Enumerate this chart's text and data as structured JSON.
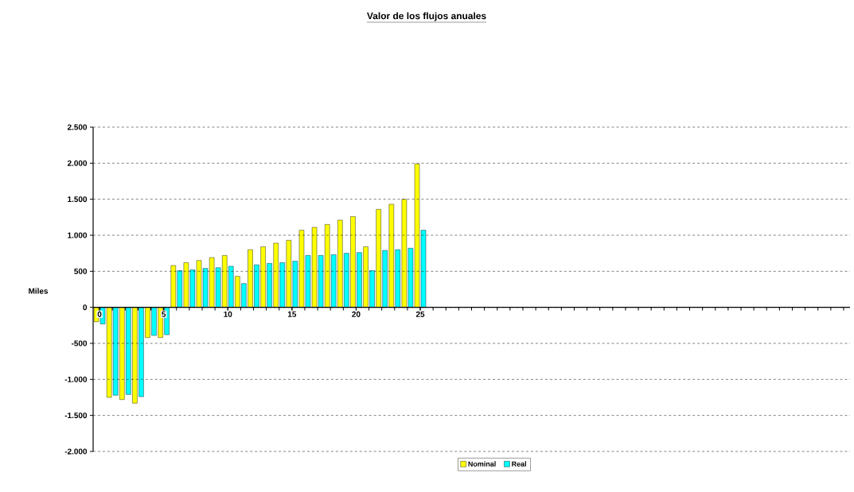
{
  "chart_data": {
    "type": "bar",
    "title": "Valor de los flujos anuales",
    "ylabel": "Miles",
    "categories": [
      "0",
      null,
      null,
      null,
      null,
      "5",
      null,
      null,
      null,
      null,
      "10",
      null,
      null,
      null,
      null,
      "15",
      null,
      null,
      null,
      null,
      "20",
      null,
      null,
      null,
      null,
      "25",
      null,
      null,
      null,
      null,
      null,
      null,
      null,
      null,
      null,
      null,
      null,
      null,
      null,
      null,
      null,
      null,
      null,
      null,
      null,
      null,
      null,
      null,
      null,
      null,
      null,
      null,
      null,
      null,
      null,
      null,
      null,
      null,
      null
    ],
    "series": [
      {
        "name": "Nominal",
        "color": "#ffff00",
        "values": [
          -200,
          -1250,
          -1280,
          -1330,
          -420,
          -420,
          580,
          620,
          650,
          690,
          720,
          430,
          800,
          840,
          890,
          930,
          1070,
          1110,
          1150,
          1210,
          1260,
          840,
          1360,
          1430,
          1500,
          1990,
          null,
          null,
          null,
          null,
          null,
          null,
          null,
          null,
          null,
          null,
          null,
          null,
          null,
          null,
          null,
          null,
          null,
          null,
          null,
          null,
          null,
          null,
          null,
          null,
          null,
          null,
          null,
          null,
          null,
          null,
          null,
          null,
          null
        ]
      },
      {
        "name": "Real",
        "color": "#00ffff",
        "values": [
          -230,
          -1220,
          -1210,
          -1240,
          -390,
          -380,
          510,
          520,
          540,
          550,
          570,
          330,
          590,
          610,
          620,
          640,
          720,
          720,
          730,
          750,
          760,
          510,
          790,
          800,
          820,
          1070,
          null,
          null,
          null,
          null,
          null,
          null,
          null,
          null,
          null,
          null,
          null,
          null,
          null,
          null,
          null,
          null,
          null,
          null,
          null,
          null,
          null,
          null,
          null,
          null,
          null,
          null,
          null,
          null,
          null,
          null,
          null,
          null,
          null
        ]
      }
    ],
    "ylim": [
      -2000,
      2500
    ],
    "yticks": [
      {
        "value": -2000,
        "label": "-2.000"
      },
      {
        "value": -1500,
        "label": "-1.500"
      },
      {
        "value": -1000,
        "label": "-1.000"
      },
      -500,
      0,
      500,
      {
        "value": 1000,
        "label": "1.000"
      },
      {
        "value": 1500,
        "label": "1.500"
      },
      {
        "value": 2000,
        "label": "2.000"
      },
      {
        "value": 2500,
        "label": "2.500"
      }
    ],
    "grid": "y",
    "legend": "bottom"
  }
}
